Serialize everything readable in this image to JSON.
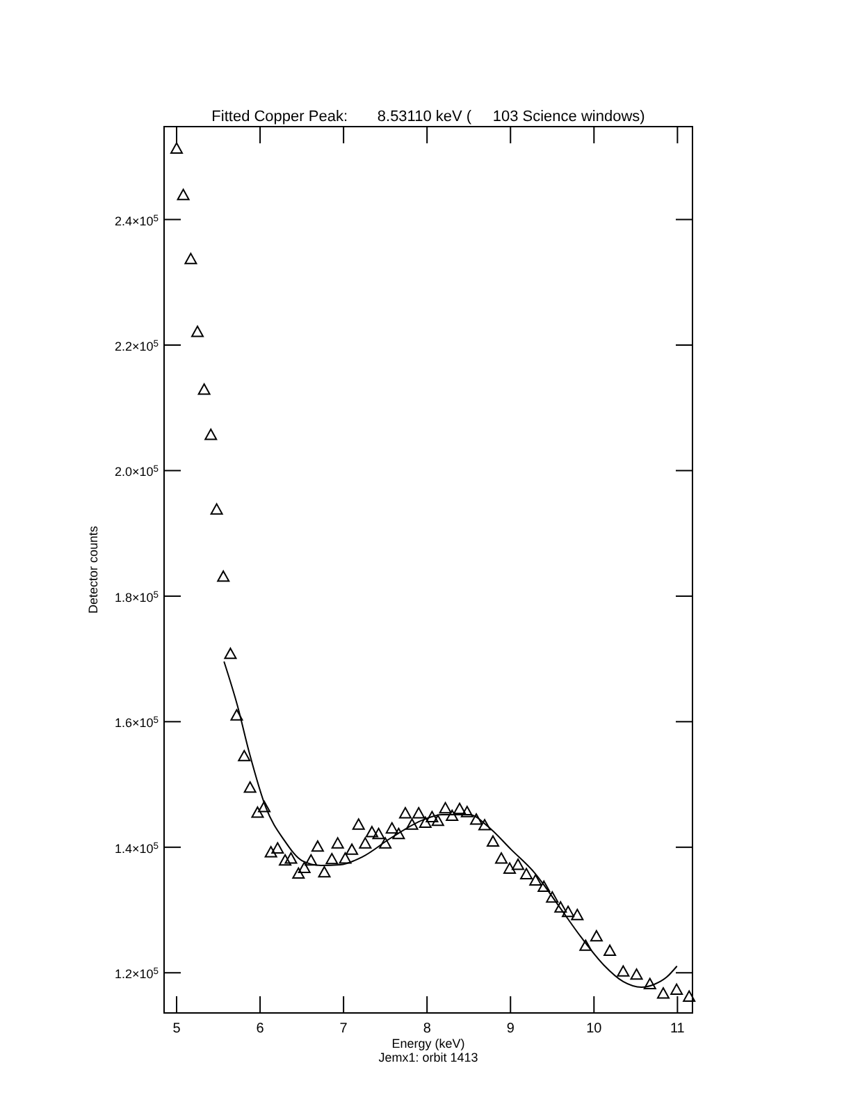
{
  "chart_data": {
    "type": "scatter",
    "title": "Fitted Copper Peak:       8.53110 keV (     103 Science windows)",
    "xlabel": "Energy (keV)",
    "ylabel": "Detector counts",
    "annotations": [
      "Jemx1: orbit 1413"
    ],
    "xlim": [
      4.85,
      11.18
    ],
    "xticks": [
      5,
      6,
      7,
      8,
      9,
      10,
      11
    ],
    "ylim": [
      113600,
      254800
    ],
    "yticks": [
      {
        "value": 120000,
        "label": "1.2×10$^{5}$"
      },
      {
        "value": 140000,
        "label": "1.4×10$^{5}$"
      },
      {
        "value": 160000,
        "label": "1.6×10$^{5}$"
      },
      {
        "value": 180000,
        "label": "1.8×10$^{5}$"
      },
      {
        "value": 200000,
        "label": "2.0×10$^{5}$"
      },
      {
        "value": 220000,
        "label": "2.2×10$^{5}$"
      },
      {
        "value": 240000,
        "label": "2.4×10$^{5}$"
      }
    ],
    "series": [
      {
        "marker": "triangle",
        "color": "#000000",
        "x": [
          5.0,
          5.08,
          5.17,
          5.25,
          5.33,
          5.41,
          5.48,
          5.56,
          5.645,
          5.72,
          5.81,
          5.88,
          5.97,
          6.05,
          6.13,
          6.21,
          6.3,
          6.37,
          6.46,
          6.53,
          6.61,
          6.69,
          6.77,
          6.86,
          6.93,
          7.02,
          7.1,
          7.18,
          7.26,
          7.34,
          7.42,
          7.5,
          7.58,
          7.66,
          7.74,
          7.82,
          7.9,
          7.98,
          8.06,
          8.13,
          8.22,
          8.3,
          8.39,
          8.48,
          8.59,
          8.69,
          8.79,
          8.89,
          8.99,
          9.09,
          9.19,
          9.3,
          9.4,
          9.5,
          9.6,
          9.69,
          9.8,
          9.9,
          10.03,
          10.19,
          10.35,
          10.51,
          10.67,
          10.83,
          10.99,
          11.14
        ],
        "values": [
          251300,
          243900,
          233700,
          222100,
          212900,
          205700,
          193800,
          183100,
          170800,
          161000,
          154500,
          149500,
          145500,
          146400,
          139200,
          139800,
          137900,
          138200,
          135800,
          136700,
          137900,
          140100,
          136000,
          138100,
          140600,
          138200,
          139600,
          143600,
          140600,
          142400,
          142100,
          140600,
          143000,
          142100,
          145400,
          143600,
          145400,
          143900,
          144800,
          144200,
          146200,
          145000,
          146100,
          145600,
          144400,
          143500,
          140900,
          138200,
          136600,
          137200,
          135700,
          134700,
          133700,
          132000,
          130400,
          129700,
          129200,
          124300,
          125800,
          123500,
          120200,
          119700,
          118200,
          116700,
          117300,
          116200
        ]
      },
      {
        "type": "line",
        "marker": "none",
        "line_style": "solid",
        "color": "#000000",
        "x": [
          5.57,
          5.73,
          5.87,
          6.07,
          6.29,
          6.51,
          6.73,
          6.96,
          7.23,
          7.57,
          7.96,
          8.18,
          8.51,
          8.73,
          9.01,
          9.29,
          9.57,
          9.85,
          10.12,
          10.35,
          10.57,
          10.73,
          10.87,
          10.99
        ],
        "values": [
          169500,
          162500,
          155100,
          146300,
          141100,
          137800,
          137100,
          137200,
          138500,
          141500,
          144400,
          145200,
          145200,
          143300,
          139600,
          135900,
          130800,
          125600,
          121200,
          118600,
          117700,
          118200,
          119300,
          121000
        ]
      }
    ]
  }
}
